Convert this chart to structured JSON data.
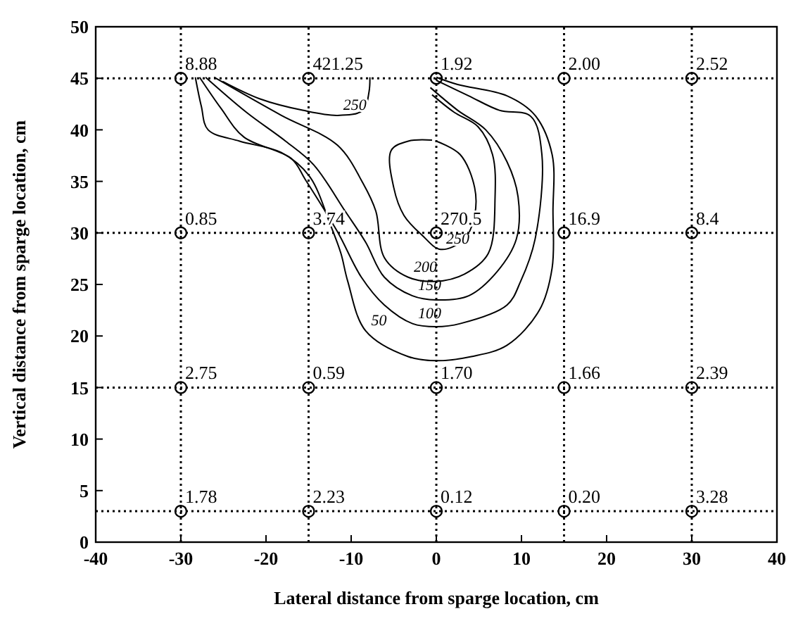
{
  "chart_data": {
    "type": "scatter",
    "xlabel": "Lateral distance from sparge location, cm",
    "ylabel": "Vertical distance from sparge location, cm",
    "xlim": [
      -40,
      40
    ],
    "xticks": [
      -40,
      -30,
      -20,
      -10,
      0,
      10,
      20,
      30,
      40
    ],
    "ylim": [
      0,
      50
    ],
    "yticks": [
      0,
      5,
      10,
      15,
      20,
      25,
      30,
      35,
      40,
      45,
      50
    ],
    "grid": false,
    "legend": false,
    "marker": "circle",
    "series": [
      {
        "color": "#000000",
        "x": [
          -30,
          -15,
          0,
          15,
          30,
          -30,
          -15,
          0,
          15,
          30,
          -30,
          -15,
          0,
          15,
          30,
          -30,
          -15,
          0,
          15,
          30
        ],
        "values": [
          45,
          45,
          45,
          45,
          45,
          30,
          30,
          30,
          30,
          30,
          15,
          15,
          15,
          15,
          15,
          3,
          3,
          3,
          3,
          3
        ]
      },
      {
        "type": "line",
        "name": "50",
        "color": "#000000",
        "line_style": "solid",
        "marker": "none",
        "x": [
          -28.3,
          -27.6,
          -26.8,
          -23.1,
          -18.2,
          -14.9,
          -12.4,
          -11.2,
          -10.4,
          -8.3,
          -3.3,
          0,
          4.1,
          8.3,
          12.1,
          13.6,
          13.7,
          13.6,
          11.6,
          8.3,
          2.5,
          0
        ],
        "values": [
          45.1,
          42.3,
          40,
          38.9,
          37.8,
          35.5,
          30.7,
          28,
          25.3,
          20.5,
          18,
          17.6,
          18,
          19.1,
          22.5,
          26.6,
          32.1,
          37.6,
          41.4,
          43.3,
          44.4,
          45.1
        ]
      },
      {
        "type": "line",
        "name": "100",
        "color": "#000000",
        "line_style": "solid",
        "marker": "none",
        "x": [
          -27.8,
          -25.3,
          -22.6,
          -17,
          -15.4,
          -11.6,
          -8.8,
          -6.1,
          -2.8,
          0,
          2.8,
          8.3,
          9.9,
          11.6,
          12.4,
          11.1,
          7.4,
          3.8,
          0
        ],
        "values": [
          45.1,
          42.1,
          39.3,
          37.2,
          35.2,
          30.1,
          25.7,
          23,
          21.2,
          20.9,
          21.2,
          23,
          25.3,
          29.4,
          37.6,
          41.3,
          41.9,
          43.3,
          44.8
        ]
      },
      {
        "type": "line",
        "name": "150",
        "color": "#000000",
        "line_style": "solid",
        "marker": "none",
        "x": [
          -27.1,
          -22.3,
          -17.7,
          -14.4,
          -10.7,
          -8.3,
          -6.1,
          -2.8,
          0,
          3.8,
          7.1,
          9.4,
          9.6,
          8.3,
          5.8,
          2.5,
          -0.7
        ],
        "values": [
          45.1,
          41.7,
          38.9,
          36.6,
          32.1,
          29.1,
          25.7,
          23.9,
          23.5,
          23.9,
          26.2,
          29.4,
          33.5,
          36.9,
          40,
          41.9,
          44.1
        ]
      },
      {
        "type": "line",
        "name": "200",
        "color": "#000000",
        "line_style": "solid",
        "marker": "none",
        "x": [
          -26.1,
          -18.2,
          -11.6,
          -8.6,
          -7.1,
          -6.1,
          -3.3,
          0,
          3.3,
          6.1,
          6.9,
          6.6,
          4.9,
          2.1,
          -0.5
        ],
        "values": [
          45.1,
          41.4,
          38.5,
          34.8,
          32.1,
          27.6,
          25.7,
          25.3,
          26,
          28,
          33.5,
          37.6,
          40.3,
          41.7,
          43.4
        ]
      },
      {
        "type": "line",
        "name": "250",
        "color": "#000000",
        "line_style": "solid",
        "marker": "none",
        "x": [
          -25.1,
          -20.7,
          -15.7,
          -11.6,
          -8.6,
          -7.9,
          -7.8
        ],
        "values": [
          44.7,
          43,
          41.9,
          41.4,
          41.9,
          43.7,
          45.1
        ]
      },
      {
        "type": "line",
        "name": "250",
        "color": "#000000",
        "line_style": "solid",
        "marker": "none",
        "x": [
          0,
          2.8,
          4.5,
          4.5,
          3.3,
          0.5,
          -1.7,
          -3.8,
          -5,
          -5.3,
          -3.3,
          -0.5
        ],
        "values": [
          38.9,
          37.6,
          34.4,
          31.7,
          29.4,
          28.4,
          29.8,
          31.7,
          34.4,
          38,
          38.9,
          39
        ]
      }
    ],
    "ref_lines": [
      {
        "axis": "x",
        "value": -30,
        "color": "#000000",
        "line_style": "dotted"
      },
      {
        "axis": "x",
        "value": -15,
        "color": "#000000",
        "line_style": "dotted"
      },
      {
        "axis": "x",
        "value": 0,
        "color": "#000000",
        "line_style": "dotted"
      },
      {
        "axis": "x",
        "value": 15,
        "color": "#000000",
        "line_style": "dotted"
      },
      {
        "axis": "x",
        "value": 30,
        "color": "#000000",
        "line_style": "dotted"
      },
      {
        "axis": "y",
        "value": 45,
        "color": "#000000",
        "line_style": "dotted"
      },
      {
        "axis": "y",
        "value": 30,
        "color": "#000000",
        "line_style": "dotted"
      },
      {
        "axis": "y",
        "value": 15,
        "color": "#000000",
        "line_style": "dotted"
      },
      {
        "axis": "y",
        "value": 3,
        "color": "#000000",
        "line_style": "dotted"
      }
    ],
    "annotations": [
      {
        "text": "8.88",
        "x": -30,
        "y": 45
      },
      {
        "text": "421.25",
        "x": -15,
        "y": 45
      },
      {
        "text": "1.92",
        "x": 0,
        "y": 45
      },
      {
        "text": "2.00",
        "x": 15,
        "y": 45
      },
      {
        "text": "2.52",
        "x": 30,
        "y": 45
      },
      {
        "text": "0.85",
        "x": -30,
        "y": 30
      },
      {
        "text": "3.74",
        "x": -15,
        "y": 30
      },
      {
        "text": "270.5",
        "x": 0,
        "y": 30
      },
      {
        "text": "16.9",
        "x": 15,
        "y": 30
      },
      {
        "text": "8.4",
        "x": 30,
        "y": 30
      },
      {
        "text": "2.75",
        "x": -30,
        "y": 15
      },
      {
        "text": "0.59",
        "x": -15,
        "y": 15
      },
      {
        "text": "1.70",
        "x": 0,
        "y": 15
      },
      {
        "text": "1.66",
        "x": 15,
        "y": 15
      },
      {
        "text": "2.39",
        "x": 30,
        "y": 15
      },
      {
        "text": "1.78",
        "x": -30,
        "y": 3
      },
      {
        "text": "2.23",
        "x": -15,
        "y": 3
      },
      {
        "text": "0.12",
        "x": 0,
        "y": 3
      },
      {
        "text": "0.20",
        "x": 15,
        "y": 3
      },
      {
        "text": "3.28",
        "x": 30,
        "y": 3
      }
    ]
  }
}
